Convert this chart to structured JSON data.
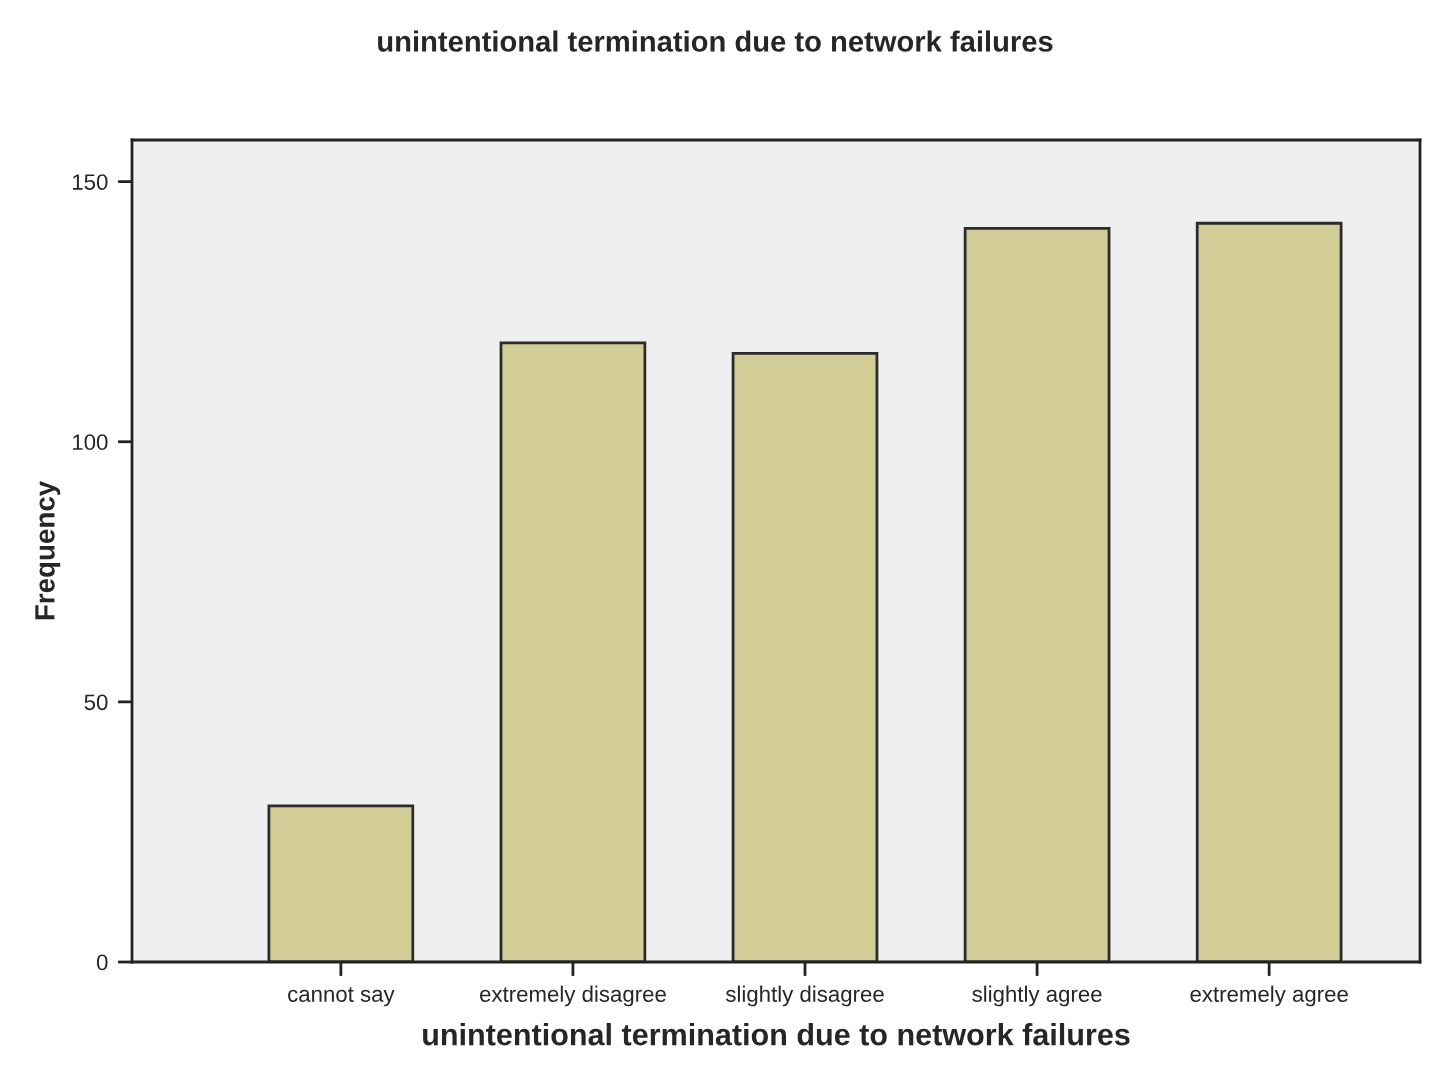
{
  "chart_data": {
    "type": "bar",
    "title": "unintentional termination due to network failures",
    "xlabel": "unintentional termination due to network failures",
    "ylabel": "Frequency",
    "categories": [
      "cannot say",
      "extremely disagree",
      "slightly disagree",
      "slightly agree",
      "extremely agree"
    ],
    "values": [
      30,
      119,
      117,
      141,
      142
    ],
    "color": "#d2cd96",
    "ylim": [
      0,
      158
    ],
    "yticks": [
      0,
      50,
      100,
      150
    ],
    "grid": false
  }
}
